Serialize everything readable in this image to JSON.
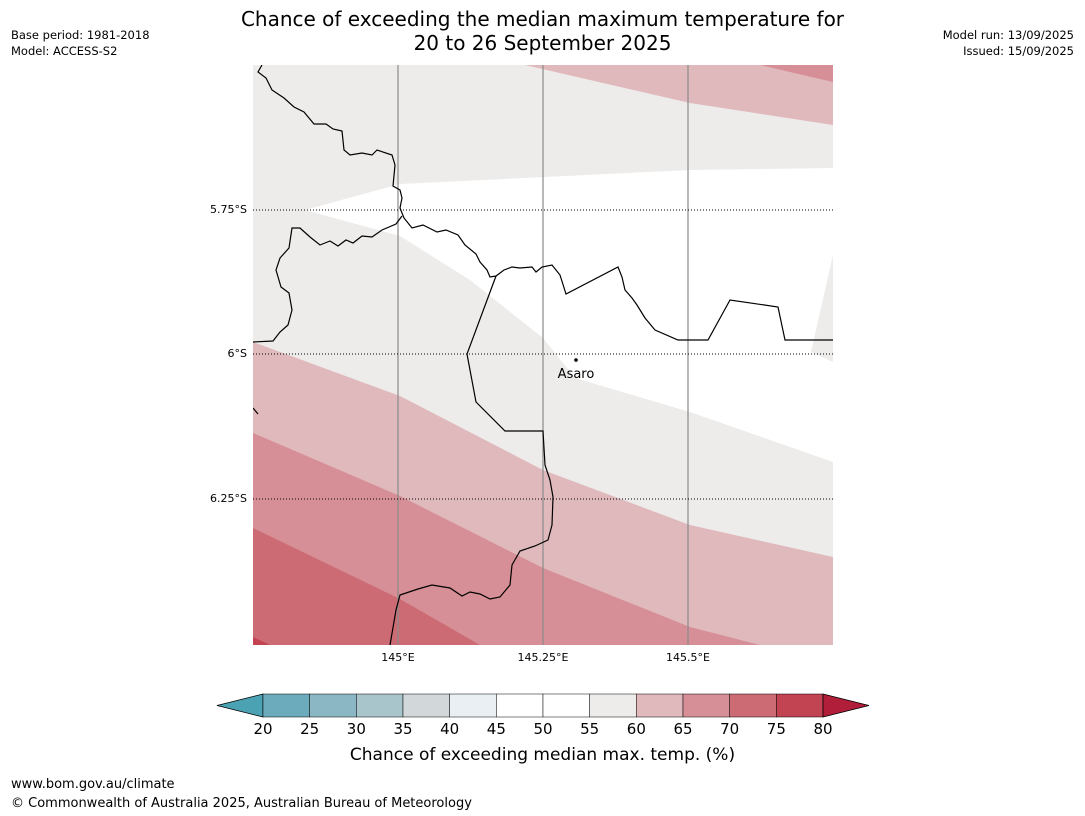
{
  "title": {
    "line1": "Chance of exceeding the median maximum temperature for",
    "line2": "20 to 26 September 2025"
  },
  "meta": {
    "base_period": "Base period: 1981-2018",
    "model": "Model: ACCESS-S2",
    "model_run": "Model run: 13/09/2025",
    "issued": "Issued: 15/09/2025"
  },
  "map": {
    "place": "Asaro",
    "lat_labels": [
      "5.75°S",
      "6°S",
      "6.25°S"
    ],
    "lon_labels": [
      "145°E",
      "145.25°E",
      "145.5°E"
    ],
    "band_colors": [
      "#eeeceb",
      "#e0b9bd",
      "#d68f96",
      "#cc6b74"
    ]
  },
  "colorbar": {
    "title": "Chance of exceeding median max. temp. (%)",
    "ticks": [
      "20",
      "25",
      "30",
      "35",
      "40",
      "45",
      "50",
      "55",
      "60",
      "65",
      "70",
      "75",
      "80"
    ],
    "colors": [
      "#4ba2b2",
      "#6cabbb",
      "#8bb6c3",
      "#a8c5cb",
      "#d2d8da",
      "#e9eff2",
      "#ffffff",
      "#ffffff",
      "#eeeceb",
      "#e0b9bd",
      "#d68f96",
      "#cc6b74",
      "#c24352",
      "#b01e3a"
    ]
  },
  "footer": {
    "url": "www.bom.gov.au/climate",
    "copyright": "© Commonwealth of Australia 2025, Australian Bureau of Meteorology"
  }
}
